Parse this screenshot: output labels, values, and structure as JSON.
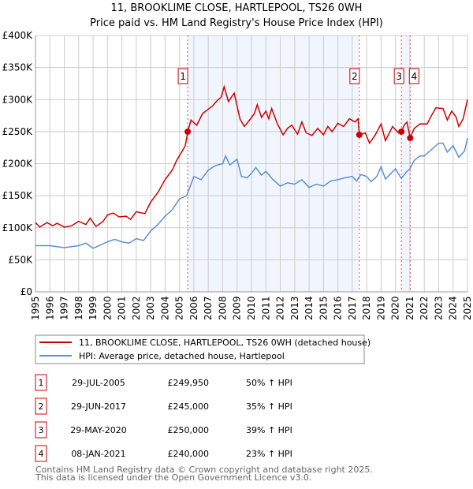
{
  "chart_data": {
    "type": "line",
    "title": "11, BROOKLIME CLOSE, HARTLEPOOL, TS26 0WH",
    "subtitle": "Price paid vs. HM Land Registry's House Price Index (HPI)",
    "xlim": [
      1995,
      2025
    ],
    "ylim": [
      0,
      400000
    ],
    "x_ticks": [
      "1995",
      "1996",
      "1997",
      "1998",
      "1999",
      "2000",
      "2001",
      "2002",
      "2003",
      "2004",
      "2005",
      "2006",
      "2007",
      "2008",
      "2009",
      "2010",
      "2011",
      "2012",
      "2013",
      "2014",
      "2015",
      "2016",
      "2017",
      "2018",
      "2019",
      "2020",
      "2021",
      "2022",
      "2023",
      "2024",
      "2025"
    ],
    "y_ticks": [
      {
        "v": 0,
        "label": "£0"
      },
      {
        "v": 50000,
        "label": "£50K"
      },
      {
        "v": 100000,
        "label": "£100K"
      },
      {
        "v": 150000,
        "label": "£150K"
      },
      {
        "v": 200000,
        "label": "£200K"
      },
      {
        "v": 250000,
        "label": "£250K"
      },
      {
        "v": 300000,
        "label": "£300K"
      },
      {
        "v": 350000,
        "label": "£350K"
      },
      {
        "v": 400000,
        "label": "£400K"
      }
    ],
    "grid": true,
    "series": [
      {
        "name": "11, BROOKLIME CLOSE, HARTLEPOOL, TS26 0WH (detached house)",
        "color": "#cc0000",
        "x": [
          1995,
          1995.3,
          1995.8,
          1996.2,
          1996.5,
          1997,
          1997.5,
          1998,
          1998.5,
          1998.8,
          1999.2,
          1999.7,
          2000,
          2000.4,
          2000.8,
          2001.3,
          2001.6,
          2002,
          2002.6,
          2003,
          2003.5,
          2004,
          2004.5,
          2004.8,
          2005.2,
          2005.4,
          2005.58,
          2005.8,
          2006.2,
          2006.6,
          2007,
          2007.3,
          2007.6,
          2007.9,
          2008.1,
          2008.4,
          2008.8,
          2009.2,
          2009.5,
          2009.8,
          2010.2,
          2010.4,
          2010.7,
          2011,
          2011.2,
          2011.4,
          2011.8,
          2012.2,
          2012.5,
          2012.8,
          2013.2,
          2013.5,
          2013.8,
          2014.2,
          2014.6,
          2015,
          2015.3,
          2015.6,
          2016,
          2016.4,
          2016.8,
          2017.2,
          2017.4,
          2017.49,
          2017.9,
          2018.2,
          2018.6,
          2019,
          2019.3,
          2019.8,
          2020.2,
          2020.41,
          2020.6,
          2020.8,
          2021.02,
          2021.3,
          2021.7,
          2022.2,
          2022.5,
          2022.8,
          2023.3,
          2023.6,
          2023.9,
          2024.2,
          2024.4,
          2024.7,
          2025
        ],
        "y": [
          108000,
          101000,
          108000,
          103000,
          107000,
          101000,
          103000,
          110000,
          105000,
          115000,
          102000,
          110000,
          120000,
          123000,
          117000,
          118000,
          113000,
          125000,
          122000,
          140000,
          155000,
          175000,
          190000,
          205000,
          220000,
          228000,
          249950,
          268000,
          260000,
          278000,
          285000,
          290000,
          298000,
          304000,
          320000,
          297000,
          310000,
          270000,
          258000,
          266000,
          278000,
          292000,
          272000,
          282000,
          270000,
          286000,
          262000,
          245000,
          255000,
          260000,
          246000,
          265000,
          248000,
          244000,
          255000,
          245000,
          258000,
          250000,
          263000,
          258000,
          270000,
          265000,
          270000,
          245000,
          248000,
          232000,
          245000,
          262000,
          236000,
          258000,
          248000,
          250000,
          260000,
          265000,
          240000,
          255000,
          262000,
          262000,
          275000,
          287000,
          286000,
          268000,
          282000,
          273000,
          258000,
          270000,
          300000
        ]
      },
      {
        "name": "HPI: Average price, detached house, Hartlepool",
        "color": "#5b8fd4",
        "x": [
          1995,
          1996,
          1997,
          1998,
          1998.5,
          1999,
          2000,
          2000.5,
          2001,
          2001.5,
          2002,
          2002.5,
          2003,
          2003.5,
          2004,
          2004.5,
          2005,
          2005.5,
          2006,
          2006.5,
          2007,
          2007.5,
          2008,
          2008.2,
          2008.5,
          2009,
          2009.3,
          2009.7,
          2010,
          2010.3,
          2010.7,
          2011,
          2011.5,
          2012,
          2012.5,
          2013,
          2013.5,
          2014,
          2014.5,
          2015,
          2015.5,
          2016,
          2016.5,
          2017,
          2017.3,
          2017.6,
          2018,
          2018.3,
          2018.7,
          2019,
          2019.3,
          2019.7,
          2020,
          2020.4,
          2020.8,
          2021,
          2021.3,
          2021.7,
          2022,
          2022.5,
          2023,
          2023.3,
          2023.6,
          2024,
          2024.4,
          2024.8,
          2025
        ],
        "y": [
          72000,
          72000,
          69000,
          72000,
          76000,
          68000,
          78000,
          82000,
          78000,
          76000,
          83000,
          80000,
          95000,
          105000,
          118000,
          128000,
          145000,
          150000,
          180000,
          175000,
          190000,
          197000,
          200000,
          212000,
          198000,
          207000,
          180000,
          178000,
          185000,
          194000,
          182000,
          188000,
          175000,
          165000,
          170000,
          168000,
          175000,
          163000,
          168000,
          165000,
          173000,
          175000,
          178000,
          180000,
          173000,
          183000,
          180000,
          172000,
          180000,
          195000,
          176000,
          185000,
          192000,
          177000,
          188000,
          192000,
          205000,
          212000,
          212000,
          222000,
          232000,
          232000,
          218000,
          228000,
          210000,
          220000,
          240000
        ]
      }
    ],
    "sales": [
      {
        "n": "1",
        "x": 2005.57,
        "y": 249950
      },
      {
        "n": "2",
        "x": 2017.49,
        "y": 245000
      },
      {
        "n": "3",
        "x": 2020.41,
        "y": 250000
      },
      {
        "n": "4",
        "x": 2021.02,
        "y": 240000
      }
    ],
    "shaded_ranges": [
      [
        2005.57,
        2017.49
      ],
      [
        2020.41,
        2021.02
      ]
    ]
  },
  "legend": {
    "items": [
      "11, BROOKLIME CLOSE, HARTLEPOOL, TS26 0WH (detached house)",
      "HPI: Average price, detached house, Hartlepool"
    ]
  },
  "transactions": [
    {
      "n": "1",
      "date": "29-JUL-2005",
      "price": "£249,950",
      "hpi": "50% ↑ HPI"
    },
    {
      "n": "2",
      "date": "29-JUN-2017",
      "price": "£245,000",
      "hpi": "35% ↑ HPI"
    },
    {
      "n": "3",
      "date": "29-MAY-2020",
      "price": "£250,000",
      "hpi": "39% ↑ HPI"
    },
    {
      "n": "4",
      "date": "08-JAN-2021",
      "price": "£240,000",
      "hpi": "23% ↑ HPI"
    }
  ],
  "footer": {
    "line1": "Contains HM Land Registry data © Crown copyright and database right 2025.",
    "line2": "This data is licensed under the Open Government Licence v3.0."
  }
}
